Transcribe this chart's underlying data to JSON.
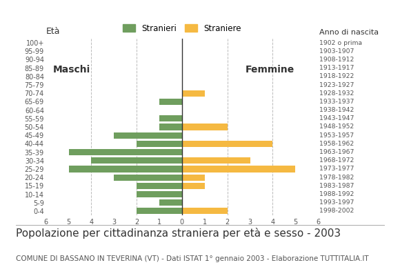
{
  "age_labels": [
    "0-4",
    "5-9",
    "10-14",
    "15-19",
    "20-24",
    "25-29",
    "30-34",
    "35-39",
    "40-44",
    "45-49",
    "50-54",
    "55-59",
    "60-64",
    "65-69",
    "70-74",
    "75-79",
    "80-84",
    "85-89",
    "90-94",
    "95-99",
    "100+"
  ],
  "birth_years": [
    "1998-2002",
    "1993-1997",
    "1988-1992",
    "1983-1987",
    "1978-1982",
    "1973-1977",
    "1968-1972",
    "1963-1967",
    "1958-1962",
    "1953-1957",
    "1948-1952",
    "1943-1947",
    "1938-1942",
    "1933-1937",
    "1928-1932",
    "1923-1927",
    "1918-1922",
    "1913-1917",
    "1908-1912",
    "1903-1907",
    "1902 o prima"
  ],
  "males": [
    2,
    1,
    2,
    2,
    3,
    5,
    4,
    5,
    2,
    3,
    1,
    1,
    0,
    1,
    0,
    0,
    0,
    0,
    0,
    0,
    0
  ],
  "females": [
    2,
    0,
    0,
    1,
    1,
    5,
    3,
    0,
    4,
    0,
    2,
    0,
    0,
    0,
    1,
    0,
    0,
    0,
    0,
    0,
    0
  ],
  "male_color": "#6f9e5e",
  "female_color": "#f5b942",
  "bar_height": 0.75,
  "xlim": 6,
  "title": "Popolazione per cittadinanza straniera per età e sesso - 2003",
  "subtitle": "COMUNE DI BASSANO IN TEVERINA (VT) - Dati ISTAT 1° gennaio 2003 - Elaborazione TUTTITALIA.IT",
  "xlabel_left": "Età",
  "xlabel_right": "Anno di nascita",
  "legend_male": "Stranieri",
  "legend_female": "Straniere",
  "label_maschi": "Maschi",
  "label_femmine": "Femmine",
  "grid_color": "#bbbbbb",
  "background_color": "#ffffff",
  "title_fontsize": 11,
  "subtitle_fontsize": 7.5,
  "tick_fontsize": 7,
  "label_fontsize": 9
}
